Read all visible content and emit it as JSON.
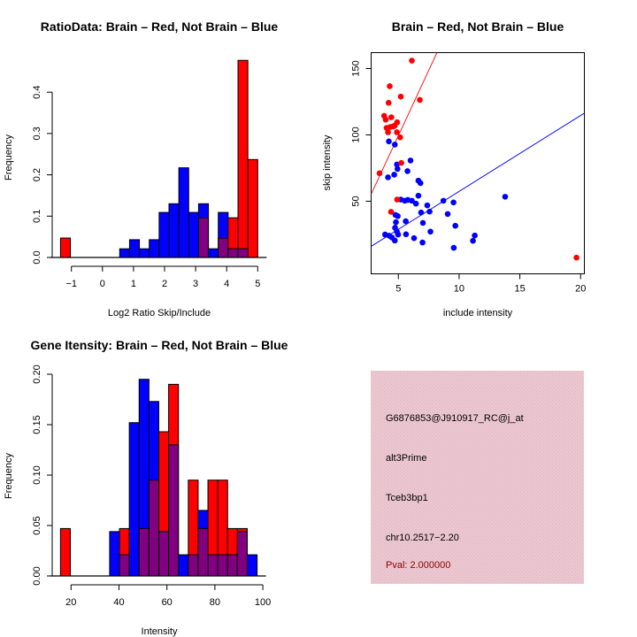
{
  "colors": {
    "brain": "#ff0000",
    "not_brain": "#0000ff",
    "overlap": "#800080",
    "panel_bg": "#e8c4cc",
    "pval_text": "#8b0000"
  },
  "chart_data": [
    {
      "id": "ratio-hist",
      "type": "bar",
      "subtype": "overlaid-histogram",
      "title": "RatioData: Brain – Red, Not Brain – Blue",
      "xlabel": "Log2 Ratio Skip/Include",
      "ylabel": "Frequency",
      "xlim": [
        -1.35,
        5.0
      ],
      "ylim": [
        0,
        0.48
      ],
      "xticks": [
        -1,
        0,
        1,
        2,
        3,
        4,
        5
      ],
      "xtick_labels": [
        "−1",
        "0",
        "1",
        "2",
        "3",
        "4",
        "5"
      ],
      "yticks": [
        0.0,
        0.1,
        0.2,
        0.3,
        0.4
      ],
      "ytick_labels": [
        "0.0",
        "0.1",
        "0.2",
        "0.3",
        "0.4"
      ],
      "bin_start": -1.35,
      "bin_width": 0.3175,
      "series": [
        {
          "name": "Brain",
          "color": "red",
          "values": [
            0.047,
            0,
            0,
            0,
            0,
            0,
            0,
            0,
            0,
            0,
            0,
            0,
            0,
            0,
            0.096,
            0,
            0.047,
            0.096,
            0.477,
            0.237
          ]
        },
        {
          "name": "Not Brain",
          "color": "blue",
          "values": [
            0,
            0,
            0,
            0,
            0,
            0,
            0.021,
            0.043,
            0.021,
            0.043,
            0.109,
            0.13,
            0.217,
            0.109,
            0.13,
            0.021,
            0.109,
            0.021,
            0.021,
            0
          ]
        }
      ]
    },
    {
      "id": "intensity-scatter",
      "type": "scatter",
      "title": "Brain – Red, Not Brain – Blue",
      "xlabel": "include intensity",
      "ylabel": "skip intensity",
      "xlim": [
        2.76,
        20.31
      ],
      "ylim": [
        -4.7,
        162
      ],
      "xticks": [
        5,
        10,
        15,
        20
      ],
      "xtick_labels": [
        "5",
        "10",
        "15",
        "20"
      ],
      "yticks": [
        50,
        100,
        150
      ],
      "ytick_labels": [
        "50",
        "100",
        "150"
      ],
      "series": [
        {
          "name": "Brain",
          "color": "red",
          "points": [
            [
              6.11,
              156
            ],
            [
              4.29,
              136.7
            ],
            [
              5.2,
              128.9
            ],
            [
              6.77,
              126.4
            ],
            [
              4.2,
              124.2
            ],
            [
              3.83,
              114.4
            ],
            [
              4.42,
              113.3
            ],
            [
              3.96,
              111.5
            ],
            [
              4.9,
              109.5
            ],
            [
              4.03,
              105.3
            ],
            [
              4.34,
              106
            ],
            [
              4.59,
              106.4
            ],
            [
              4.7,
              107
            ],
            [
              4.15,
              102
            ],
            [
              4.88,
              102
            ],
            [
              5.15,
              98.2
            ],
            [
              3.45,
              71.1
            ],
            [
              5.24,
              78.9
            ],
            [
              4.9,
              51.3
            ],
            [
              4.4,
              42
            ],
            [
              19.66,
              7.5
            ]
          ],
          "fit": {
            "slope": 19.7,
            "intercept": 0.9
          }
        },
        {
          "name": "Not Brain",
          "color": "blue",
          "points": [
            [
              4.22,
              95.1
            ],
            [
              4.71,
              92.7
            ],
            [
              6.0,
              80.7
            ],
            [
              4.88,
              77.7
            ],
            [
              4.93,
              74.4
            ],
            [
              5.75,
              72.7
            ],
            [
              4.66,
              70
            ],
            [
              4.15,
              68
            ],
            [
              6.65,
              65.5
            ],
            [
              6.82,
              63.7
            ],
            [
              6.65,
              54.2
            ],
            [
              5.2,
              51.3
            ],
            [
              5.53,
              50.4
            ],
            [
              5.78,
              51
            ],
            [
              6.11,
              50.4
            ],
            [
              6.45,
              48.2
            ],
            [
              7.38,
              46.9
            ],
            [
              8.71,
              50.4
            ],
            [
              9.54,
              49.1
            ],
            [
              4.76,
              39.7
            ],
            [
              4.95,
              38.8
            ],
            [
              6.87,
              41.5
            ],
            [
              7.57,
              42.2
            ],
            [
              9.06,
              40.4
            ],
            [
              5.61,
              34.9
            ],
            [
              4.8,
              34.2
            ],
            [
              7.02,
              33.7
            ],
            [
              9.69,
              31.5
            ],
            [
              4.73,
              30
            ],
            [
              4.88,
              27.1
            ],
            [
              7.64,
              27.1
            ],
            [
              3.91,
              24.9
            ],
            [
              4.25,
              24
            ],
            [
              4.98,
              24.9
            ],
            [
              5.63,
              25.1
            ],
            [
              4.47,
              22.7
            ],
            [
              6.29,
              22.2
            ],
            [
              4.71,
              20.4
            ],
            [
              6.99,
              18.9
            ],
            [
              9.56,
              14.9
            ],
            [
              13.79,
              53.4
            ],
            [
              11.29,
              24.2
            ],
            [
              11.14,
              20.2
            ]
          ],
          "fit": {
            "slope": 5.72,
            "intercept": 0.21
          }
        }
      ]
    },
    {
      "id": "gene-hist",
      "type": "bar",
      "subtype": "overlaid-histogram",
      "title": "Gene Itensity: Brain – Red, Not Brain – Blue",
      "xlabel": "Intensity",
      "ylabel": "Frequency",
      "xlim": [
        15.6,
        97.6
      ],
      "ylim": [
        0,
        0.2
      ],
      "xticks": [
        20,
        40,
        60,
        80,
        100
      ],
      "xtick_labels": [
        "20",
        "40",
        "60",
        "80",
        "100"
      ],
      "yticks": [
        0.0,
        0.05,
        0.1,
        0.15,
        0.2
      ],
      "ytick_labels": [
        "0.00",
        "0.05",
        "0.10",
        "0.15",
        "0.20"
      ],
      "bin_start": 15.6,
      "bin_width": 4.1,
      "series": [
        {
          "name": "Brain",
          "color": "red",
          "values": [
            0.047,
            0,
            0,
            0,
            0,
            0,
            0.047,
            0,
            0.047,
            0.095,
            0.143,
            0.19,
            0,
            0.095,
            0.047,
            0.095,
            0.095,
            0.047,
            0.047,
            0
          ]
        },
        {
          "name": "Not Brain",
          "color": "blue",
          "values": [
            0,
            0,
            0,
            0,
            0,
            0.044,
            0.021,
            0.152,
            0.195,
            0.173,
            0.044,
            0.13,
            0.021,
            0.021,
            0.065,
            0.021,
            0.021,
            0.021,
            0.044,
            0.021
          ]
        }
      ]
    }
  ],
  "info_panel": {
    "probe_id": "G6876853@J910917_RC@j_at",
    "event_type": "alt3Prime",
    "gene": "Tceb3bp1",
    "location": "chr10.2517−2.20",
    "pval": "Pval: 2.000000"
  }
}
